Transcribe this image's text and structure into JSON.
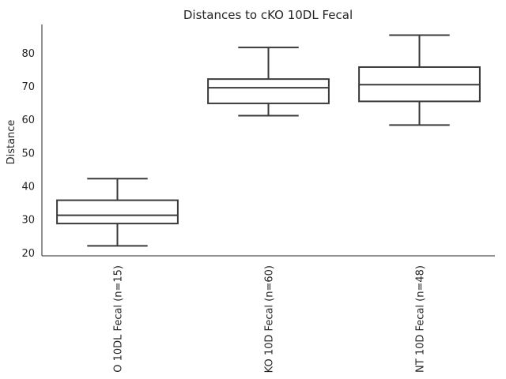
{
  "chart_data": {
    "type": "box",
    "title": "Distances to cKO 10DL Fecal",
    "ylabel": "Distance",
    "xlabel": "",
    "ylim": [
      19,
      88.5
    ],
    "yticks": [
      20,
      30,
      40,
      50,
      60,
      70,
      80
    ],
    "grid": false,
    "categories": [
      "O 10DL Fecal (n=15)",
      "KO 10D Fecal (n=60)",
      "NT 10D Fecal (n=48)"
    ],
    "boxes": [
      {
        "whisker_low": 22,
        "q1": 28.7,
        "median": 31.2,
        "q3": 35.7,
        "whisker_high": 42.2
      },
      {
        "whisker_low": 61.1,
        "q1": 64.8,
        "median": 69.5,
        "q3": 72.1,
        "whisker_high": 81.6
      },
      {
        "whisker_low": 58.3,
        "q1": 65.4,
        "median": 70.4,
        "q3": 75.7,
        "whisker_high": 85.3
      }
    ]
  }
}
